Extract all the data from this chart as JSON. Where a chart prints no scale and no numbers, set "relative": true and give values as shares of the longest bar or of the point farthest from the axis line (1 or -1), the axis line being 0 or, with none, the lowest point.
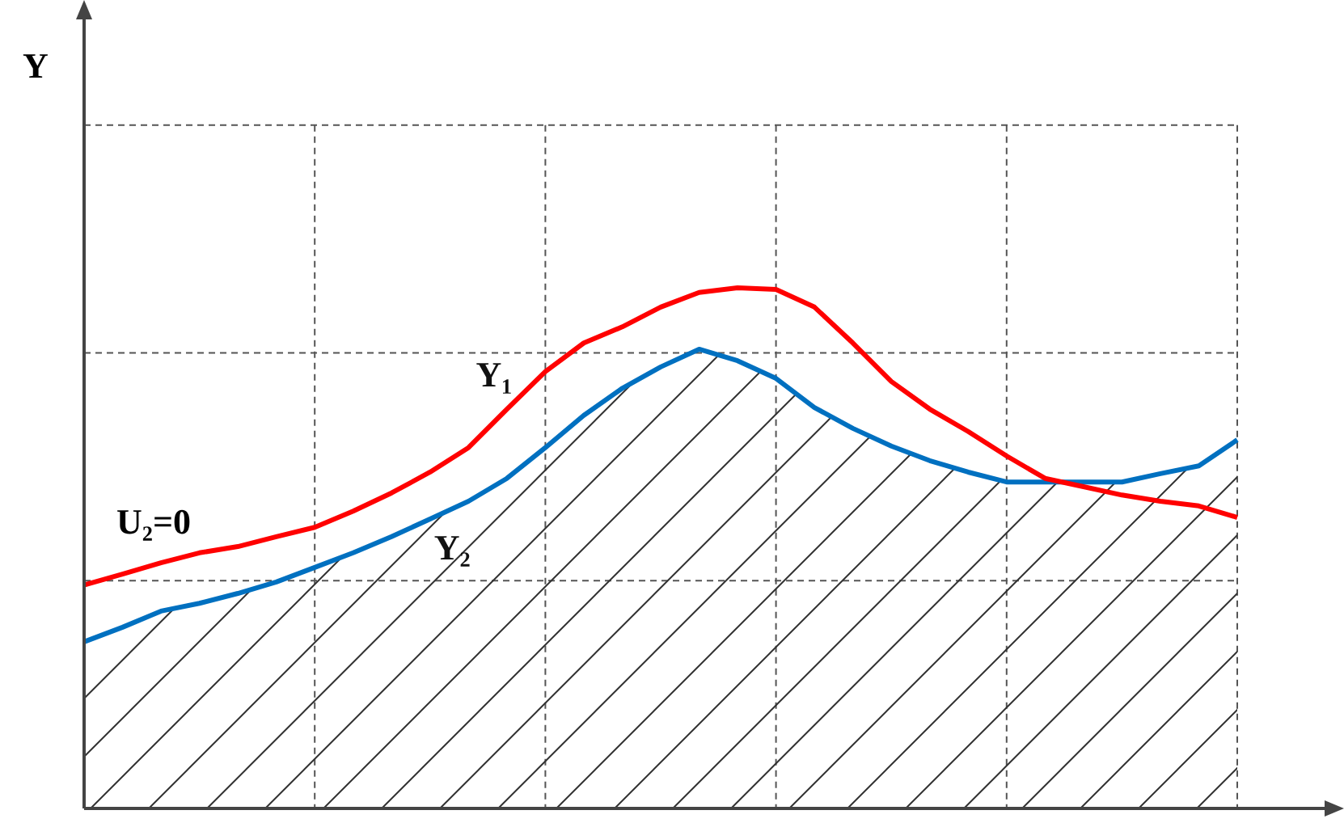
{
  "chart_data": {
    "type": "line",
    "relative": true,
    "annotations": [
      "Y",
      "U₂=0"
    ],
    "grid": true,
    "marker": "none",
    "categories": [
      null,
      null,
      null,
      null,
      null,
      null,
      null,
      null,
      null,
      null,
      null,
      null,
      null,
      null,
      null,
      null,
      null,
      null,
      null,
      null,
      null,
      null,
      null,
      null,
      null,
      null,
      null,
      null,
      null,
      null,
      null
    ],
    "series": [
      {
        "name": "Y₁",
        "color": "#ff0000",
        "values": [
          0.429,
          0.45,
          0.472,
          0.491,
          0.503,
          0.522,
          0.54,
          0.571,
          0.606,
          0.646,
          0.693,
          0.767,
          0.839,
          0.894,
          0.925,
          0.963,
          0.991,
          1,
          0.997,
          0.963,
          0.894,
          0.82,
          0.767,
          0.724,
          0.677,
          0.634,
          0.618,
          0.602,
          0.59,
          0.581,
          0.559
        ]
      },
      {
        "name": "Y₂",
        "type": "area",
        "color": "#0070c0",
        "values": [
          0.32,
          0.348,
          0.379,
          0.394,
          0.413,
          0.435,
          0.463,
          0.491,
          0.522,
          0.556,
          0.59,
          0.634,
          0.693,
          0.755,
          0.807,
          0.848,
          0.882,
          0.86,
          0.826,
          0.77,
          0.73,
          0.696,
          0.668,
          0.646,
          0.627,
          0.627,
          0.627,
          0.627,
          0.643,
          0.658,
          0.708
        ]
      }
    ]
  }
}
